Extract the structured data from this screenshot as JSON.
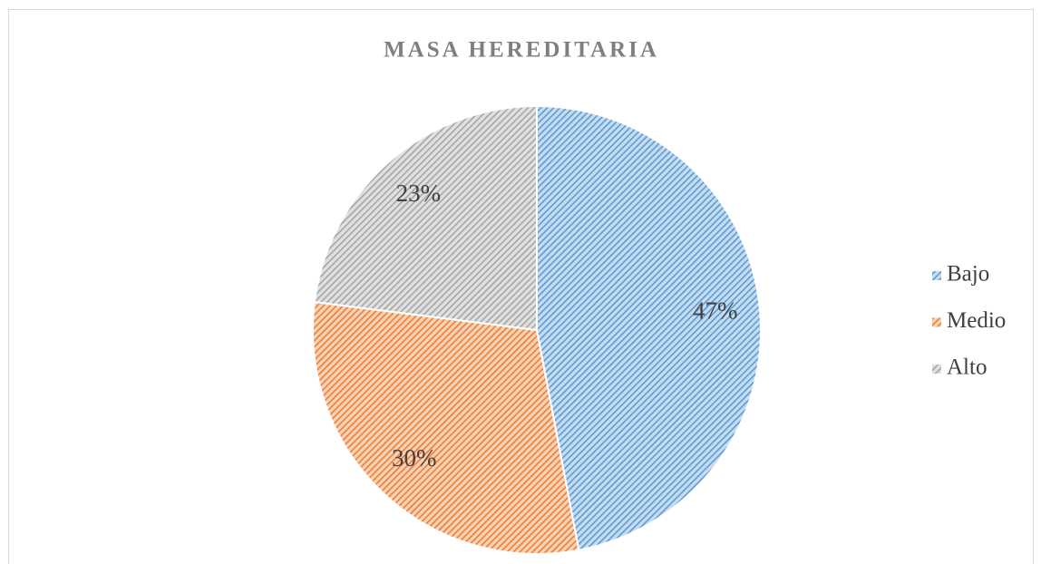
{
  "chart_data": {
    "type": "pie",
    "title": "MASA HEREDITARIA",
    "categories": [
      "Bajo",
      "Medio",
      "Alto"
    ],
    "values": [
      47,
      30,
      23
    ],
    "value_labels": [
      "47%",
      "30%",
      "23%"
    ],
    "colors": [
      "#5b9bd5",
      "#ed7d31",
      "#a5a5a5"
    ],
    "legend": "right"
  }
}
